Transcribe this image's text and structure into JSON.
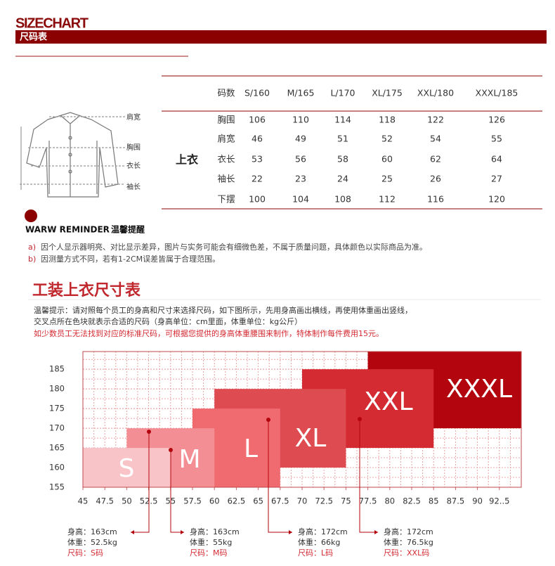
{
  "header": {
    "title": "SIZECHART",
    "subtitle": "尺码表"
  },
  "size_table": {
    "headers": [
      "码数",
      "S/160",
      "M/165",
      "L/170",
      "XL/175",
      "XXL/180",
      "XXXL/185"
    ],
    "section": "上衣",
    "rows": [
      [
        "胸围",
        106,
        110,
        114,
        118,
        122,
        126
      ],
      [
        "肩宽",
        46,
        49,
        51,
        52,
        54,
        55
      ],
      [
        "衣长",
        53,
        56,
        58,
        60,
        62,
        64
      ],
      [
        "袖长",
        22,
        23,
        24,
        25,
        26,
        27
      ],
      [
        "下摆",
        100,
        104,
        108,
        112,
        116,
        120
      ]
    ]
  },
  "diagram": {
    "labels": [
      "肩宽",
      "胸围",
      "衣长",
      "袖长"
    ]
  },
  "reminder": {
    "title": "WARW REMINDER",
    "title_cn": "温馨提醒",
    "items": [
      {
        "marker": "a)",
        "text": "因个人显示器明亮、对比显示差异，图片与实务可能会有细微色差，不属于质量问题，具体颜色以实际商品为准。"
      },
      {
        "marker": "b)",
        "text": "因测量方式不同，若有1-2CM误差皆属于合理范围。"
      }
    ]
  },
  "workwear": {
    "title": "工装上衣尺寸表",
    "notes": [
      "温馨提示：请对照每个员工的身高和尺寸来选择尺码，如下图所示，先用身高画出横线，再使用体重画出竖线，",
      "交叉点所在色块就表示合适的尺码（身高单位：cm里面，体重单位：kg公斤）",
      "如少数员工无法找到对应的标准尺码，可根据您提供的身高体重腰围来制作，特体制作每件费用15元。"
    ]
  },
  "chart_data": {
    "type": "size-blocks",
    "xlim": [
      45,
      95
    ],
    "ylim": [
      155,
      189.5
    ],
    "xticks": [
      45,
      47.5,
      50,
      52.5,
      55,
      57.5,
      60,
      62.5,
      65,
      67.5,
      70,
      72.5,
      75,
      77.5,
      80,
      82.5,
      85,
      87.5,
      90,
      {
        "value": 92.5,
        "label": "92..5"
      }
    ],
    "yticks": [
      155,
      160,
      165,
      170,
      175,
      180,
      185
    ],
    "grid": true,
    "series": [
      {
        "name": "S",
        "color": "#f8c4c8",
        "x": [
          45,
          55
        ],
        "y": [
          155,
          165
        ]
      },
      {
        "name": "M",
        "color": "#f38f94",
        "x": [
          50,
          60
        ],
        "y": [
          155,
          170
        ]
      },
      {
        "name": "L",
        "color": "#f06b70",
        "x": [
          57.5,
          67.5
        ],
        "y": [
          155,
          175
        ]
      },
      {
        "name": "XL",
        "color": "#de4b50",
        "x": [
          60,
          75
        ],
        "y": [
          160,
          180
        ]
      },
      {
        "name": "XXL",
        "color": "#d42b32",
        "x": [
          70,
          85
        ],
        "y": [
          165,
          185
        ]
      },
      {
        "name": "XXXL",
        "color": "#b3050d",
        "x": [
          77.5,
          95
        ],
        "y": [
          170,
          189.5
        ]
      }
    ],
    "callouts": [
      {
        "lines": [
          "身高：163cm",
          "体重：52.5kg",
          "尺码：S码"
        ]
      },
      {
        "lines": [
          "身高：163cm",
          "体重：55kg",
          "尺码：M码"
        ]
      },
      {
        "lines": [
          "身高：172cm",
          "体重：66kg",
          "尺码：L码"
        ]
      },
      {
        "lines": [
          "身高：172cm",
          "体重：76.5kg",
          "尺码：XXL码"
        ]
      }
    ]
  }
}
